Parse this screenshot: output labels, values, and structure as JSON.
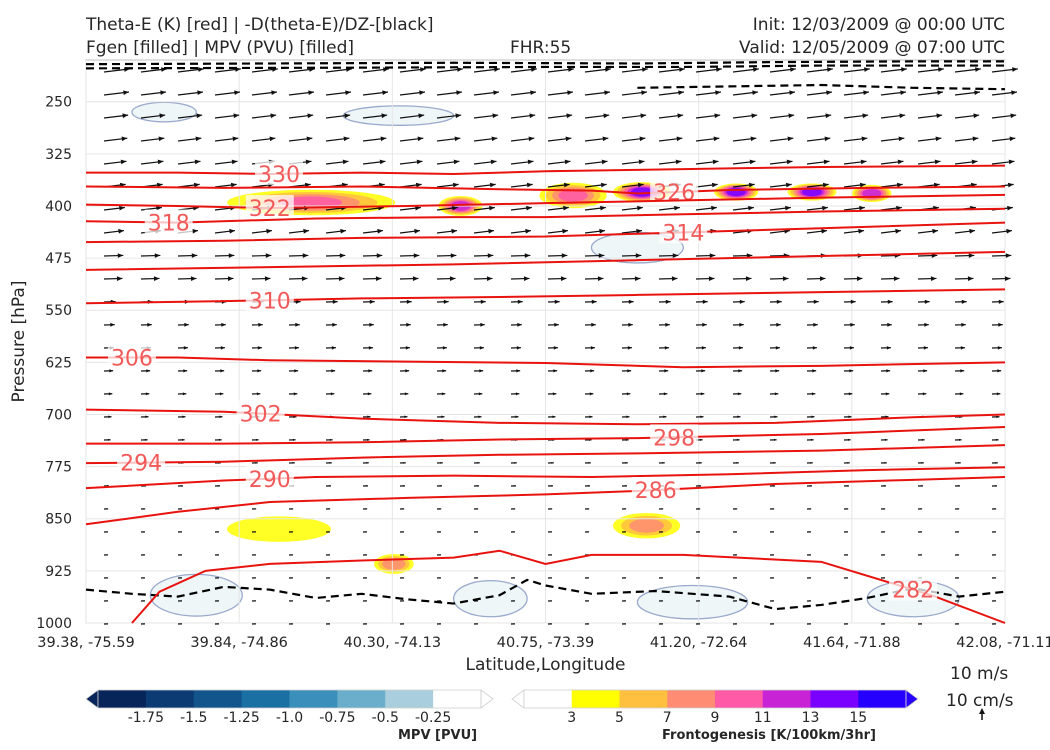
{
  "header": {
    "title_line1_left": "Theta-E (K) [red] | -D(theta-E)/DZ-[black]",
    "title_line2_left": "Fgen [filled] | MPV (PVU) [filled]",
    "forecast_hour": "FHR:55",
    "init": "Init: 12/03/2009 @ 00:00 UTC",
    "valid": "Valid: 12/05/2009 @ 07:00 UTC"
  },
  "chart_data": {
    "type": "cross-section",
    "xlabel": "Latitude,Longitude",
    "ylabel": "Pressure [hPa]",
    "ylim": [
      1000,
      190
    ],
    "y_ticks": [
      250,
      325,
      400,
      475,
      550,
      625,
      700,
      775,
      850,
      925,
      1000
    ],
    "x_ticks": [
      "39.38, -75.59",
      "39.84, -74.86",
      "40.30, -74.13",
      "40.75, -73.39",
      "41.20, -72.64",
      "41.64, -71.88",
      "42.08, -71.11"
    ],
    "grid": true,
    "theta_e_contours": [
      {
        "level": "330",
        "points": [
          [
            0,
            352
          ],
          [
            0.1,
            352
          ],
          [
            0.2,
            354
          ],
          [
            0.3,
            352
          ],
          [
            0.4,
            354
          ],
          [
            0.5,
            350
          ],
          [
            0.6,
            348
          ],
          [
            0.7,
            346
          ],
          [
            0.8,
            344
          ],
          [
            0.9,
            343
          ],
          [
            1,
            342
          ]
        ]
      },
      {
        "level": "326",
        "points": [
          [
            0,
            372
          ],
          [
            0.15,
            374
          ],
          [
            0.3,
            372
          ],
          [
            0.45,
            376
          ],
          [
            0.55,
            378
          ],
          [
            0.6,
            382
          ],
          [
            0.7,
            377
          ],
          [
            0.85,
            374
          ],
          [
            1,
            372
          ]
        ]
      },
      {
        "level": "322",
        "points": [
          [
            0,
            398
          ],
          [
            0.1,
            400
          ],
          [
            0.2,
            403
          ],
          [
            0.35,
            400
          ],
          [
            0.5,
            396
          ],
          [
            0.65,
            392
          ],
          [
            0.8,
            388
          ],
          [
            1,
            384
          ]
        ]
      },
      {
        "level": "318",
        "points": [
          [
            0,
            422
          ],
          [
            0.1,
            424
          ],
          [
            0.25,
            418
          ],
          [
            0.4,
            416
          ],
          [
            0.5,
            416
          ],
          [
            0.65,
            412
          ],
          [
            0.8,
            408
          ],
          [
            1,
            404
          ]
        ]
      },
      {
        "level": "314",
        "points": [
          [
            0,
            452
          ],
          [
            0.15,
            450
          ],
          [
            0.3,
            446
          ],
          [
            0.5,
            444
          ],
          [
            0.65,
            438
          ],
          [
            0.8,
            432
          ],
          [
            1,
            424
          ]
        ]
      },
      {
        "level": "",
        "points": [
          [
            0,
            492
          ],
          [
            0.2,
            488
          ],
          [
            0.4,
            484
          ],
          [
            0.6,
            478
          ],
          [
            0.8,
            472
          ],
          [
            1,
            466
          ]
        ]
      },
      {
        "level": "310",
        "points": [
          [
            0,
            540
          ],
          [
            0.15,
            537
          ],
          [
            0.3,
            533
          ],
          [
            0.45,
            531
          ],
          [
            0.6,
            528
          ],
          [
            0.8,
            524
          ],
          [
            1,
            520
          ]
        ]
      },
      {
        "level": "306",
        "points": [
          [
            0,
            618
          ],
          [
            0.1,
            618
          ],
          [
            0.2,
            622
          ],
          [
            0.35,
            624
          ],
          [
            0.5,
            626
          ],
          [
            0.65,
            632
          ],
          [
            0.8,
            630
          ],
          [
            1,
            625
          ]
        ]
      },
      {
        "level": "302",
        "points": [
          [
            0,
            693
          ],
          [
            0.15,
            696
          ],
          [
            0.3,
            706
          ],
          [
            0.45,
            712
          ],
          [
            0.6,
            714
          ],
          [
            0.75,
            712
          ],
          [
            0.9,
            704
          ],
          [
            1,
            700
          ]
        ]
      },
      {
        "level": "298",
        "points": [
          [
            0,
            742
          ],
          [
            0.15,
            742
          ],
          [
            0.3,
            740
          ],
          [
            0.45,
            736
          ],
          [
            0.6,
            734
          ],
          [
            0.8,
            728
          ],
          [
            1,
            718
          ]
        ]
      },
      {
        "level": "294",
        "points": [
          [
            0,
            770
          ],
          [
            0.15,
            768
          ],
          [
            0.3,
            762
          ],
          [
            0.45,
            758
          ],
          [
            0.6,
            756
          ],
          [
            0.8,
            752
          ],
          [
            1,
            744
          ]
        ]
      },
      {
        "level": "290",
        "points": [
          [
            0,
            806
          ],
          [
            0.15,
            795
          ],
          [
            0.25,
            790
          ],
          [
            0.4,
            788
          ],
          [
            0.55,
            790
          ],
          [
            0.7,
            786
          ],
          [
            0.85,
            780
          ],
          [
            1,
            776
          ]
        ]
      },
      {
        "level": "286",
        "points": [
          [
            0,
            858
          ],
          [
            0.1,
            840
          ],
          [
            0.2,
            826
          ],
          [
            0.35,
            820
          ],
          [
            0.5,
            815
          ],
          [
            0.6,
            810
          ],
          [
            0.75,
            800
          ],
          [
            0.9,
            794
          ],
          [
            1,
            790
          ]
        ]
      },
      {
        "level": "282",
        "points": [
          [
            0.05,
            1000
          ],
          [
            0.08,
            955
          ],
          [
            0.13,
            925
          ],
          [
            0.2,
            915
          ],
          [
            0.3,
            910
          ],
          [
            0.4,
            906
          ],
          [
            0.45,
            896
          ],
          [
            0.5,
            915
          ],
          [
            0.55,
            902
          ],
          [
            0.65,
            902
          ],
          [
            0.8,
            912
          ],
          [
            0.92,
            960
          ],
          [
            1,
            1000
          ]
        ]
      }
    ],
    "stability_contours": [
      {
        "points": [
          [
            0,
            196
          ],
          [
            0.2,
            195
          ],
          [
            0.4,
            194
          ],
          [
            0.6,
            195
          ],
          [
            0.75,
            193
          ],
          [
            0.9,
            192
          ],
          [
            1,
            192
          ]
        ]
      },
      {
        "points": [
          [
            0,
            202
          ],
          [
            0.3,
            201
          ],
          [
            0.5,
            200
          ],
          [
            0.65,
            200
          ],
          [
            0.8,
            198
          ],
          [
            1,
            198
          ]
        ]
      },
      {
        "points": [
          [
            0.6,
            230
          ],
          [
            0.7,
            228
          ],
          [
            0.8,
            226
          ],
          [
            0.9,
            230
          ],
          [
            1,
            232
          ]
        ]
      },
      {
        "points": [
          [
            0,
            952
          ],
          [
            0.05,
            958
          ],
          [
            0.1,
            962
          ],
          [
            0.15,
            948
          ],
          [
            0.2,
            952
          ],
          [
            0.25,
            964
          ],
          [
            0.3,
            958
          ],
          [
            0.35,
            966
          ],
          [
            0.4,
            972
          ],
          [
            0.45,
            960
          ],
          [
            0.48,
            938
          ],
          [
            0.5,
            946
          ],
          [
            0.55,
            958
          ],
          [
            0.62,
            954
          ],
          [
            0.7,
            962
          ],
          [
            0.75,
            980
          ],
          [
            0.8,
            974
          ],
          [
            0.85,
            964
          ],
          [
            0.9,
            950
          ],
          [
            0.95,
            962
          ],
          [
            1,
            955
          ]
        ]
      }
    ],
    "mpv_negative_areas": [
      {
        "x": 0.05,
        "p": 265,
        "w": 0.07,
        "h": 14
      },
      {
        "x": 0.28,
        "p": 270,
        "w": 0.12,
        "h": 14
      },
      {
        "x": 0.55,
        "p": 460,
        "w": 0.1,
        "h": 22
      },
      {
        "x": 0.07,
        "p": 960,
        "w": 0.1,
        "h": 30
      },
      {
        "x": 0.4,
        "p": 965,
        "w": 0.08,
        "h": 26
      },
      {
        "x": 0.6,
        "p": 970,
        "w": 0.12,
        "h": 24
      },
      {
        "x": 0.85,
        "p": 965,
        "w": 0.1,
        "h": 26
      }
    ],
    "fgen_areas": [
      {
        "x": 0.16,
        "p": 395,
        "w": 0.17,
        "h": 14,
        "value": 9
      },
      {
        "x": 0.39,
        "p": 400,
        "w": 0.035,
        "h": 10,
        "value": 12
      },
      {
        "x": 0.5,
        "p": 385,
        "w": 0.06,
        "h": 14,
        "value": 9
      },
      {
        "x": 0.58,
        "p": 380,
        "w": 0.05,
        "h": 10,
        "value": 14
      },
      {
        "x": 0.69,
        "p": 380,
        "w": 0.035,
        "h": 8,
        "value": 13
      },
      {
        "x": 0.77,
        "p": 380,
        "w": 0.04,
        "h": 8,
        "value": 13
      },
      {
        "x": 0.84,
        "p": 382,
        "w": 0.03,
        "h": 8,
        "value": 11
      },
      {
        "x": 0.58,
        "p": 860,
        "w": 0.06,
        "h": 14,
        "value": 7
      },
      {
        "x": 0.32,
        "p": 915,
        "w": 0.03,
        "h": 10,
        "value": 7
      },
      {
        "x": 0.16,
        "p": 865,
        "w": 0.1,
        "h": 14,
        "value": 4
      }
    ],
    "mpv_colorbar": {
      "label": "MPV [PVU]",
      "ticks": [
        "-1.75",
        "-1.5",
        "-1.25",
        "-1.0",
        "-0.75",
        "-0.5",
        "-0.25"
      ],
      "colors": [
        "#08255a",
        "#0c3b74",
        "#12548c",
        "#1a6fa3",
        "#3b8fbb",
        "#6aaecb",
        "#a9cfde",
        "#ffffff"
      ]
    },
    "fgen_colorbar": {
      "label": "Frontogenesis [K/100km/3hr]",
      "ticks": [
        "3",
        "5",
        "7",
        "9",
        "11",
        "13",
        "15"
      ],
      "colors": [
        "#ffffff",
        "#ffff00",
        "#ffc040",
        "#ff8c73",
        "#ff5aa8",
        "#c824d6",
        "#7a00ff",
        "#2600ff"
      ]
    },
    "vector_reference": {
      "upper": "10 m/s",
      "lower": "10 cm/s"
    }
  }
}
